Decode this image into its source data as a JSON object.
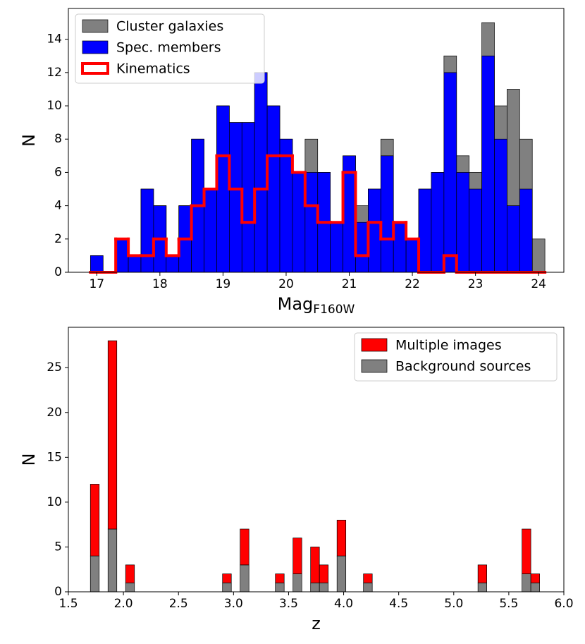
{
  "chart_data": [
    {
      "type": "histogram",
      "stacked": false,
      "xlabel": "Mag",
      "xlabel_sub": "F160W",
      "ylabel": "N",
      "bins": [
        16.9,
        17.1,
        17.3,
        17.5,
        17.7,
        17.9,
        18.1,
        18.3,
        18.5,
        18.7,
        18.9,
        19.1,
        19.3,
        19.5,
        19.7,
        19.9,
        20.1,
        20.3,
        20.5,
        20.7,
        20.9,
        21.1,
        21.3,
        21.5,
        21.7,
        21.9,
        22.1,
        22.3,
        22.5,
        22.7,
        22.9,
        23.1,
        23.3,
        23.5,
        23.7,
        23.9,
        24.1
      ],
      "series": [
        {
          "name": "Cluster galaxies",
          "color": "#808080",
          "histtype": "bar",
          "values": [
            1,
            0,
            2,
            1,
            5,
            4,
            1,
            4,
            8,
            5,
            10,
            9,
            9,
            12,
            10,
            8,
            6,
            8,
            6,
            3,
            7,
            4,
            5,
            8,
            3,
            2,
            5,
            6,
            13,
            7,
            6,
            15,
            10,
            11,
            8,
            2
          ]
        },
        {
          "name": "Spec. members",
          "color": "#0000ff",
          "histtype": "bar",
          "values": [
            1,
            0,
            2,
            1,
            5,
            4,
            1,
            4,
            8,
            5,
            10,
            9,
            9,
            12,
            10,
            8,
            6,
            6,
            6,
            3,
            7,
            3,
            5,
            7,
            3,
            2,
            5,
            6,
            12,
            6,
            5,
            13,
            8,
            4,
            5,
            0
          ]
        },
        {
          "name": "Kinematics",
          "color": "#ff0000",
          "histtype": "step",
          "values": [
            0,
            0,
            2,
            1,
            1,
            2,
            1,
            2,
            4,
            5,
            7,
            5,
            3,
            5,
            7,
            7,
            6,
            4,
            3,
            3,
            6,
            1,
            3,
            2,
            3,
            2,
            0,
            0,
            1,
            0,
            0,
            0,
            0,
            0,
            0,
            0
          ]
        }
      ],
      "xlim": [
        16.55,
        24.4
      ],
      "xticks": [
        17,
        18,
        19,
        20,
        21,
        22,
        23,
        24
      ],
      "ylim": [
        0,
        15.85
      ],
      "yticks": [
        0,
        2,
        4,
        6,
        8,
        10,
        12,
        14
      ],
      "legend": "upper left"
    },
    {
      "type": "histogram",
      "stacked": true,
      "xlabel": "z",
      "ylabel": "N",
      "bins": [
        1.7,
        1.78,
        1.86,
        1.94,
        2.02,
        2.1,
        2.18,
        2.26,
        2.34,
        2.42,
        2.5,
        2.58,
        2.66,
        2.74,
        2.82,
        2.9,
        2.98,
        3.06,
        3.14,
        3.22,
        3.3,
        3.38,
        3.46,
        3.54,
        3.62,
        3.7,
        3.78,
        3.86,
        3.94,
        4.02,
        4.1,
        4.18,
        4.26,
        4.34,
        4.42,
        4.5,
        4.58,
        4.66,
        4.74,
        4.82,
        4.9,
        4.98,
        5.06,
        5.14,
        5.22,
        5.3,
        5.38,
        5.46,
        5.54,
        5.62,
        5.7,
        5.78
      ],
      "series": [
        {
          "name": "Multiple images",
          "color": "#ff0000",
          "histtype": "bar",
          "values": [
            8,
            0,
            21,
            0,
            2,
            0,
            0,
            0,
            0,
            0,
            0,
            0,
            0,
            0,
            0,
            1,
            0,
            4,
            0,
            0,
            0,
            1,
            0,
            4,
            0,
            4,
            2,
            0,
            4,
            0,
            0,
            1,
            0,
            0,
            0,
            0,
            0,
            0,
            0,
            0,
            0,
            0,
            0,
            0,
            2,
            0,
            0,
            0,
            0,
            5,
            1
          ]
        },
        {
          "name": "Background sources",
          "color": "#808080",
          "histtype": "bar",
          "values": [
            4,
            0,
            7,
            0,
            1,
            0,
            0,
            0,
            0,
            0,
            0,
            0,
            0,
            0,
            0,
            1,
            0,
            3,
            0,
            0,
            0,
            1,
            0,
            2,
            0,
            1,
            1,
            0,
            4,
            0,
            0,
            1,
            0,
            0,
            0,
            0,
            0,
            0,
            0,
            0,
            0,
            0,
            0,
            0,
            1,
            0,
            0,
            0,
            0,
            2,
            1
          ]
        }
      ],
      "xlim": [
        1.5,
        6.0
      ],
      "xticks": [
        {
          "value": 1.5,
          "label": "1.5"
        },
        {
          "value": 2,
          "label": "2.0"
        },
        {
          "value": 2.5,
          "label": "2.5"
        },
        {
          "value": 3,
          "label": "3.0"
        },
        {
          "value": 3.5,
          "label": "3.5"
        },
        {
          "value": 4,
          "label": "4.0"
        },
        {
          "value": 4.5,
          "label": "4.5"
        },
        {
          "value": 5,
          "label": "5.0"
        },
        {
          "value": 5.5,
          "label": "5.5"
        },
        {
          "value": 6,
          "label": "6.0"
        }
      ],
      "ylim": [
        0,
        29.5
      ],
      "yticks": [
        0,
        5,
        10,
        15,
        20,
        25
      ],
      "legend": "upper right"
    }
  ]
}
